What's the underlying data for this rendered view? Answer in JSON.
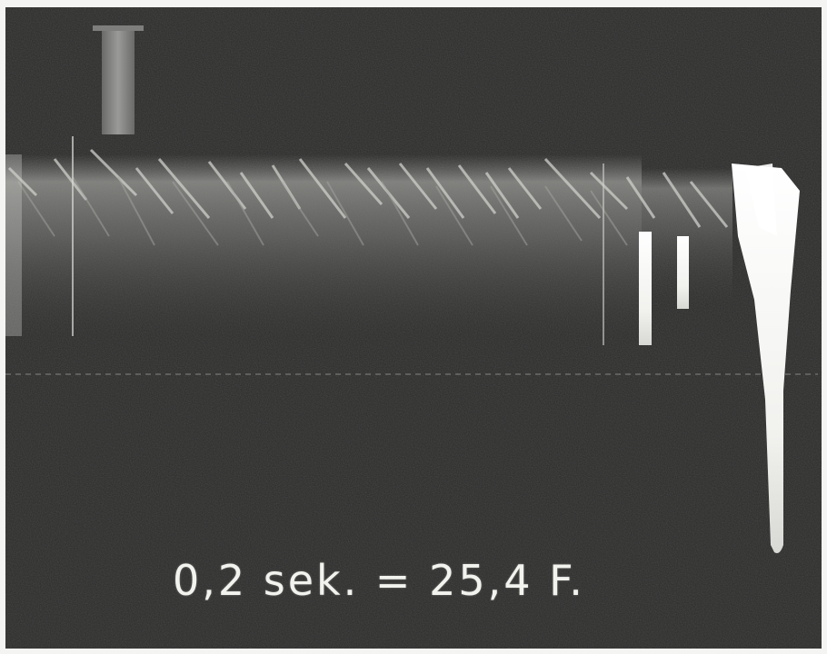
{
  "photo": {
    "caption": "0,2 sek. = 25,4 F.",
    "tint_dark": "#2a2a2a",
    "tint_light": "#f2f2ee"
  }
}
